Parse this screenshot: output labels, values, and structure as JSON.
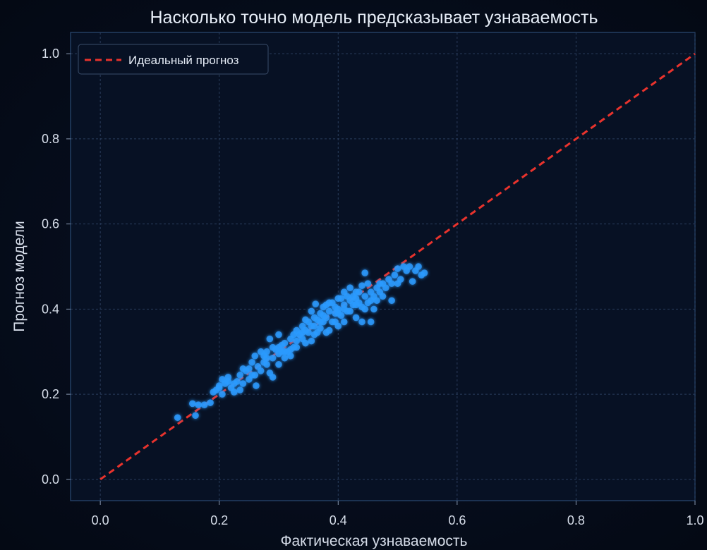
{
  "chart_data": {
    "type": "scatter",
    "title": "Насколько точно модель предсказывает узнаваемость",
    "xlabel": "Фактическая узнаваемость",
    "ylabel": "Прогноз модели",
    "xlim": [
      -0.05,
      1.0
    ],
    "ylim": [
      -0.05,
      1.05
    ],
    "xticks": [
      "0.0",
      "0.2",
      "0.4",
      "0.6",
      "0.8",
      "1.0"
    ],
    "yticks": [
      "0.0",
      "0.2",
      "0.4",
      "0.6",
      "0.8",
      "1.0"
    ],
    "grid": true,
    "legend": {
      "position": "top-left",
      "entries": [
        "Идеальный прогноз"
      ]
    },
    "reference_line": {
      "label": "Идеальный прогноз",
      "x": [
        0.0,
        1.0
      ],
      "y": [
        0.0,
        1.0
      ],
      "color": "#e8332d",
      "style": "dashed"
    },
    "point_color": "#2c9bff",
    "points": [
      [
        0.13,
        0.145
      ],
      [
        0.155,
        0.178
      ],
      [
        0.16,
        0.15
      ],
      [
        0.165,
        0.175
      ],
      [
        0.175,
        0.175
      ],
      [
        0.185,
        0.18
      ],
      [
        0.19,
        0.205
      ],
      [
        0.195,
        0.21
      ],
      [
        0.2,
        0.215
      ],
      [
        0.205,
        0.235
      ],
      [
        0.21,
        0.225
      ],
      [
        0.215,
        0.24
      ],
      [
        0.22,
        0.215
      ],
      [
        0.225,
        0.205
      ],
      [
        0.23,
        0.23
      ],
      [
        0.235,
        0.245
      ],
      [
        0.24,
        0.225
      ],
      [
        0.245,
        0.255
      ],
      [
        0.25,
        0.235
      ],
      [
        0.25,
        0.26
      ],
      [
        0.255,
        0.245
      ],
      [
        0.26,
        0.29
      ],
      [
        0.262,
        0.22
      ],
      [
        0.265,
        0.265
      ],
      [
        0.27,
        0.255
      ],
      [
        0.275,
        0.275
      ],
      [
        0.28,
        0.27
      ],
      [
        0.28,
        0.3
      ],
      [
        0.285,
        0.25
      ],
      [
        0.285,
        0.33
      ],
      [
        0.29,
        0.285
      ],
      [
        0.29,
        0.24
      ],
      [
        0.295,
        0.305
      ],
      [
        0.3,
        0.295
      ],
      [
        0.3,
        0.27
      ],
      [
        0.3,
        0.34
      ],
      [
        0.305,
        0.315
      ],
      [
        0.31,
        0.285
      ],
      [
        0.31,
        0.32
      ],
      [
        0.315,
        0.3
      ],
      [
        0.32,
        0.33
      ],
      [
        0.32,
        0.29
      ],
      [
        0.325,
        0.31
      ],
      [
        0.33,
        0.325
      ],
      [
        0.33,
        0.35
      ],
      [
        0.335,
        0.34
      ],
      [
        0.34,
        0.33
      ],
      [
        0.34,
        0.36
      ],
      [
        0.345,
        0.35
      ],
      [
        0.35,
        0.345
      ],
      [
        0.35,
        0.37
      ],
      [
        0.355,
        0.325
      ],
      [
        0.355,
        0.395
      ],
      [
        0.36,
        0.36
      ],
      [
        0.36,
        0.34
      ],
      [
        0.362,
        0.412
      ],
      [
        0.365,
        0.375
      ],
      [
        0.37,
        0.355
      ],
      [
        0.37,
        0.39
      ],
      [
        0.375,
        0.37
      ],
      [
        0.375,
        0.405
      ],
      [
        0.38,
        0.345
      ],
      [
        0.38,
        0.38
      ],
      [
        0.385,
        0.395
      ],
      [
        0.39,
        0.37
      ],
      [
        0.39,
        0.415
      ],
      [
        0.395,
        0.39
      ],
      [
        0.4,
        0.36
      ],
      [
        0.4,
        0.4
      ],
      [
        0.4,
        0.425
      ],
      [
        0.405,
        0.385
      ],
      [
        0.41,
        0.41
      ],
      [
        0.41,
        0.37
      ],
      [
        0.415,
        0.43
      ],
      [
        0.42,
        0.395
      ],
      [
        0.42,
        0.45
      ],
      [
        0.425,
        0.41
      ],
      [
        0.43,
        0.38
      ],
      [
        0.43,
        0.425
      ],
      [
        0.435,
        0.44
      ],
      [
        0.44,
        0.405
      ],
      [
        0.44,
        0.37
      ],
      [
        0.445,
        0.485
      ],
      [
        0.445,
        0.43
      ],
      [
        0.45,
        0.415
      ],
      [
        0.455,
        0.44
      ],
      [
        0.455,
        0.37
      ],
      [
        0.46,
        0.43
      ],
      [
        0.465,
        0.45
      ],
      [
        0.47,
        0.46
      ],
      [
        0.475,
        0.43
      ],
      [
        0.48,
        0.45
      ],
      [
        0.485,
        0.47
      ],
      [
        0.49,
        0.42
      ],
      [
        0.49,
        0.46
      ],
      [
        0.495,
        0.48
      ],
      [
        0.5,
        0.495
      ],
      [
        0.505,
        0.47
      ],
      [
        0.51,
        0.5
      ],
      [
        0.515,
        0.49
      ],
      [
        0.52,
        0.5
      ],
      [
        0.525,
        0.465
      ],
      [
        0.53,
        0.49
      ],
      [
        0.535,
        0.5
      ],
      [
        0.54,
        0.48
      ],
      [
        0.545,
        0.485
      ],
      [
        0.205,
        0.2
      ],
      [
        0.215,
        0.23
      ],
      [
        0.24,
        0.26
      ],
      [
        0.27,
        0.3
      ],
      [
        0.29,
        0.31
      ],
      [
        0.31,
        0.3
      ],
      [
        0.325,
        0.34
      ],
      [
        0.345,
        0.32
      ],
      [
        0.355,
        0.36
      ],
      [
        0.375,
        0.385
      ],
      [
        0.385,
        0.35
      ],
      [
        0.395,
        0.405
      ],
      [
        0.405,
        0.425
      ],
      [
        0.415,
        0.395
      ],
      [
        0.425,
        0.43
      ],
      [
        0.435,
        0.415
      ],
      [
        0.445,
        0.4
      ],
      [
        0.465,
        0.42
      ],
      [
        0.255,
        0.275
      ],
      [
        0.28,
        0.285
      ],
      [
        0.305,
        0.3
      ],
      [
        0.33,
        0.31
      ],
      [
        0.345,
        0.375
      ],
      [
        0.365,
        0.345
      ],
      [
        0.38,
        0.41
      ],
      [
        0.395,
        0.37
      ],
      [
        0.41,
        0.44
      ],
      [
        0.42,
        0.42
      ],
      [
        0.43,
        0.44
      ],
      [
        0.45,
        0.46
      ],
      [
        0.46,
        0.4
      ],
      [
        0.47,
        0.44
      ],
      [
        0.2,
        0.22
      ],
      [
        0.225,
        0.225
      ],
      [
        0.235,
        0.21
      ],
      [
        0.26,
        0.245
      ],
      [
        0.275,
        0.29
      ],
      [
        0.3,
        0.31
      ],
      [
        0.32,
        0.305
      ],
      [
        0.34,
        0.345
      ],
      [
        0.36,
        0.38
      ],
      [
        0.37,
        0.37
      ],
      [
        0.385,
        0.415
      ],
      [
        0.4,
        0.39
      ],
      [
        0.41,
        0.4
      ],
      [
        0.43,
        0.41
      ],
      [
        0.44,
        0.455
      ],
      [
        0.455,
        0.42
      ],
      [
        0.475,
        0.46
      ],
      [
        0.5,
        0.46
      ]
    ]
  }
}
